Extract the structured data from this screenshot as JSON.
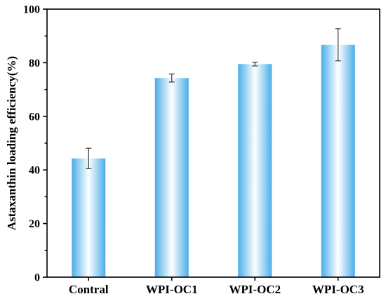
{
  "chart_data": {
    "type": "bar",
    "categories": [
      "Contral",
      "WPI-OC1",
      "WPI-OC2",
      "WPI-OC3"
    ],
    "values": [
      44.3,
      74.3,
      79.5,
      86.7
    ],
    "errors": [
      3.8,
      1.5,
      0.7,
      6.0
    ],
    "xlabel": "",
    "ylabel": "Astaxanthin loading efficiency(%)",
    "ylim": [
      0,
      100
    ],
    "yticks": [
      0,
      20,
      40,
      60,
      80,
      100
    ],
    "grid": false,
    "colors": {
      "bar_edge": "#4aaee8",
      "bar_center": "#ffffff",
      "axis": "#000000"
    }
  }
}
